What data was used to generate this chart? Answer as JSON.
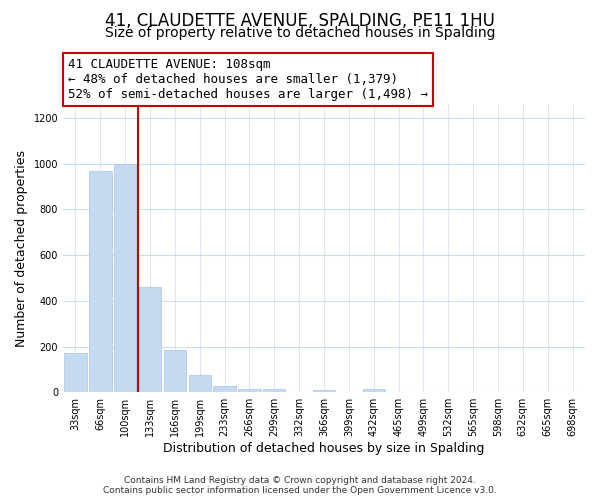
{
  "title": "41, CLAUDETTE AVENUE, SPALDING, PE11 1HU",
  "subtitle": "Size of property relative to detached houses in Spalding",
  "xlabel": "Distribution of detached houses by size in Spalding",
  "ylabel": "Number of detached properties",
  "bar_labels": [
    "33sqm",
    "66sqm",
    "100sqm",
    "133sqm",
    "166sqm",
    "199sqm",
    "233sqm",
    "266sqm",
    "299sqm",
    "332sqm",
    "366sqm",
    "399sqm",
    "432sqm",
    "465sqm",
    "499sqm",
    "532sqm",
    "565sqm",
    "598sqm",
    "632sqm",
    "665sqm",
    "698sqm"
  ],
  "bar_values": [
    170,
    970,
    1000,
    460,
    185,
    75,
    25,
    15,
    12,
    0,
    10,
    0,
    12,
    0,
    0,
    0,
    0,
    0,
    0,
    0,
    0
  ],
  "bar_color": "#c5d9f0",
  "bar_edgecolor": "#aac5e0",
  "vline_color": "#cc0000",
  "annotation_line1": "41 CLAUDETTE AVENUE: 108sqm",
  "annotation_line2": "← 48% of detached houses are smaller (1,379)",
  "annotation_line3": "52% of semi-detached houses are larger (1,498) →",
  "annotation_box_facecolor": "#ffffff",
  "annotation_box_edgecolor": "#cc0000",
  "ylim": [
    0,
    1260
  ],
  "yticks": [
    0,
    200,
    400,
    600,
    800,
    1000,
    1200
  ],
  "footer_line1": "Contains HM Land Registry data © Crown copyright and database right 2024.",
  "footer_line2": "Contains public sector information licensed under the Open Government Licence v3.0.",
  "bg_color": "#ffffff",
  "grid_color": "#ccddee",
  "title_fontsize": 12,
  "subtitle_fontsize": 10,
  "axis_label_fontsize": 9,
  "tick_fontsize": 7,
  "annotation_fontsize": 9,
  "footer_fontsize": 6.5
}
